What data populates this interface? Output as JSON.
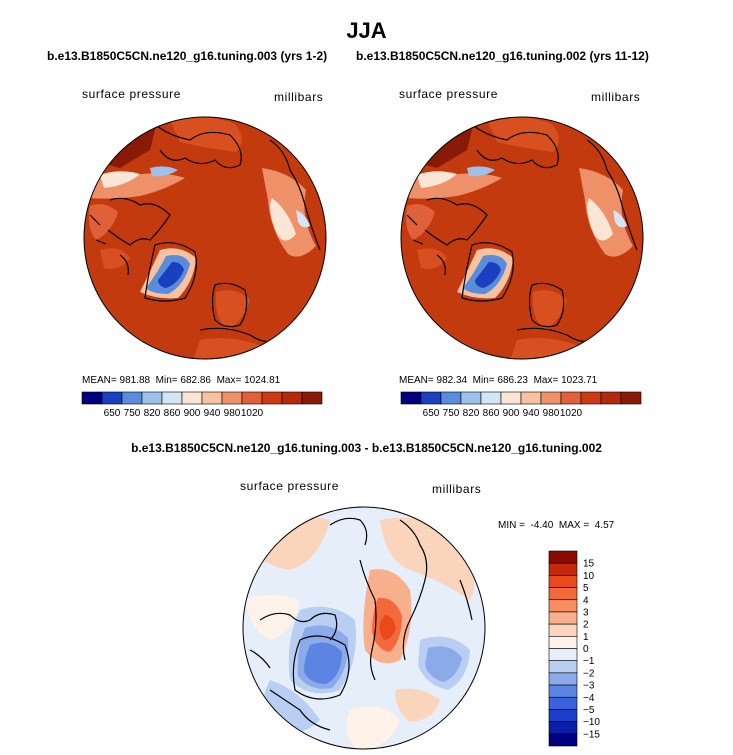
{
  "figure": {
    "title": "JJA",
    "left_case": "b.e13.B1850C5CN.ne120_g16.tuning.003 (yrs 1-2)",
    "right_case": "b.e13.B1850C5CN.ne120_g16.tuning.002 (yrs 11-12)",
    "diff_title": "b.e13.B1850C5CN.ne120_g16.tuning.003 - b.e13.B1850C5CN.ne120_g16.tuning.002"
  },
  "chart_data": [
    {
      "type": "heatmap",
      "projection": "polar stereographic (north pole)",
      "variable": "surface pressure",
      "units": "millibars",
      "stats": {
        "mean_label": "MEAN=",
        "mean": "981.88",
        "min_label": "Min=",
        "min": "682.86",
        "max_label": "Max=",
        "max": "1024.81"
      },
      "levels": [
        "650",
        "750",
        "820",
        "860",
        "900",
        "940",
        "980",
        "1020"
      ],
      "colors": [
        "#00007f",
        "#1a3fbf",
        "#5a8cdc",
        "#9cc2ec",
        "#d4e6f6",
        "#fbe6d6",
        "#f6c2a0",
        "#ee9068",
        "#e0603a",
        "#cc3a14",
        "#b22a0a",
        "#8a1a08"
      ]
    },
    {
      "type": "heatmap",
      "projection": "polar stereographic (north pole)",
      "variable": "surface pressure",
      "units": "millibars",
      "stats": {
        "mean_label": "MEAN=",
        "mean": "982.34",
        "min_label": "Min=",
        "min": "686.23",
        "max_label": "Max=",
        "max": "1023.71"
      },
      "levels": [
        "650",
        "750",
        "820",
        "860",
        "900",
        "940",
        "980",
        "1020"
      ],
      "colors": [
        "#00007f",
        "#1a3fbf",
        "#5a8cdc",
        "#9cc2ec",
        "#d4e6f6",
        "#fbe6d6",
        "#f6c2a0",
        "#ee9068",
        "#e0603a",
        "#cc3a14",
        "#b22a0a",
        "#8a1a08"
      ]
    },
    {
      "type": "heatmap",
      "projection": "polar stereographic (north pole)",
      "variable": "surface pressure",
      "units": "millibars",
      "stats": {
        "min_label": "MIN =",
        "min": "-4.40",
        "max_label": "MAX =",
        "max": "4.57"
      },
      "levels": [
        "15",
        "10",
        "5",
        "4",
        "3",
        "2",
        "1",
        "0",
        "−1",
        "−2",
        "−3",
        "−4",
        "−5",
        "−10",
        "−15"
      ],
      "colors": [
        "#8a0a00",
        "#c42a08",
        "#e84a1c",
        "#f26a3c",
        "#f68e62",
        "#f8b08c",
        "#fbd4bc",
        "#fff2e8",
        "#e6eefa",
        "#b8cef2",
        "#8aaaea",
        "#5c84e2",
        "#3a62da",
        "#1c3ec8",
        "#0c1ea8",
        "#000080"
      ]
    }
  ]
}
